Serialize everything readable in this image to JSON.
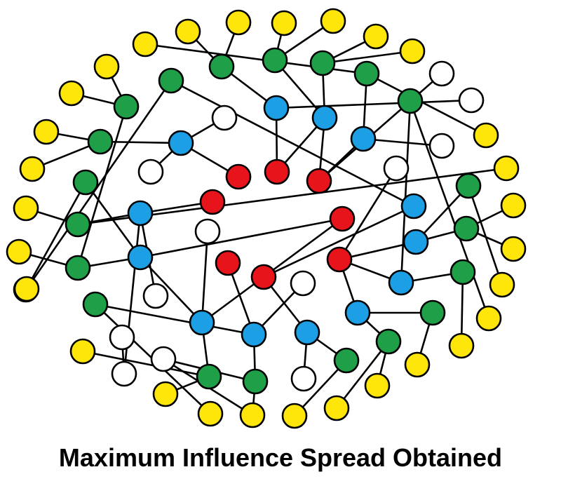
{
  "caption": "Maximum Influence Spread Obtained",
  "colors": {
    "red": "#e8141c",
    "blue": "#1d9fe6",
    "green": "#1e9f48",
    "yellow": "#ffe60a",
    "white": "#ffffff"
  },
  "nodes": [
    {
      "id": "r1",
      "c": "red"
    },
    {
      "id": "r2",
      "c": "red"
    },
    {
      "id": "r3",
      "c": "red"
    },
    {
      "id": "r4",
      "c": "red"
    },
    {
      "id": "r5",
      "c": "red"
    },
    {
      "id": "r6",
      "c": "red"
    },
    {
      "id": "r7",
      "c": "red"
    },
    {
      "id": "r8",
      "c": "red"
    },
    {
      "id": "b1",
      "c": "blue"
    },
    {
      "id": "b2",
      "c": "blue"
    },
    {
      "id": "b3",
      "c": "blue"
    },
    {
      "id": "b4",
      "c": "blue"
    },
    {
      "id": "b5",
      "c": "blue"
    },
    {
      "id": "b6",
      "c": "blue"
    },
    {
      "id": "b7",
      "c": "blue"
    },
    {
      "id": "b8",
      "c": "blue"
    },
    {
      "id": "b9",
      "c": "blue"
    },
    {
      "id": "b10",
      "c": "blue"
    },
    {
      "id": "b11",
      "c": "blue"
    },
    {
      "id": "b12",
      "c": "blue"
    },
    {
      "id": "b13",
      "c": "blue"
    },
    {
      "id": "g1",
      "c": "green"
    },
    {
      "id": "g2",
      "c": "green"
    },
    {
      "id": "g3",
      "c": "green"
    },
    {
      "id": "g4",
      "c": "green"
    },
    {
      "id": "g5",
      "c": "green"
    },
    {
      "id": "g6",
      "c": "green"
    },
    {
      "id": "g7",
      "c": "green"
    },
    {
      "id": "g8",
      "c": "green"
    },
    {
      "id": "g9",
      "c": "green"
    },
    {
      "id": "g10",
      "c": "green"
    },
    {
      "id": "g11",
      "c": "green"
    },
    {
      "id": "g12",
      "c": "green"
    },
    {
      "id": "g13",
      "c": "green"
    },
    {
      "id": "g14",
      "c": "green"
    },
    {
      "id": "g15",
      "c": "green"
    },
    {
      "id": "g16",
      "c": "green"
    },
    {
      "id": "g17",
      "c": "green"
    },
    {
      "id": "g18",
      "c": "green"
    },
    {
      "id": "g19",
      "c": "green"
    },
    {
      "id": "g20",
      "c": "green"
    },
    {
      "id": "y1",
      "c": "yellow"
    },
    {
      "id": "y2",
      "c": "yellow"
    },
    {
      "id": "y3",
      "c": "yellow"
    },
    {
      "id": "y4",
      "c": "yellow"
    },
    {
      "id": "y5",
      "c": "yellow"
    },
    {
      "id": "y6",
      "c": "yellow"
    },
    {
      "id": "y7",
      "c": "yellow"
    },
    {
      "id": "y8",
      "c": "yellow"
    },
    {
      "id": "y9",
      "c": "yellow"
    },
    {
      "id": "y10",
      "c": "yellow"
    },
    {
      "id": "y11",
      "c": "yellow"
    },
    {
      "id": "y12",
      "c": "yellow"
    },
    {
      "id": "y13",
      "c": "yellow"
    },
    {
      "id": "y14",
      "c": "yellow"
    },
    {
      "id": "y15",
      "c": "yellow"
    },
    {
      "id": "y16",
      "c": "yellow"
    },
    {
      "id": "y17",
      "c": "yellow"
    },
    {
      "id": "y18",
      "c": "yellow"
    },
    {
      "id": "y19",
      "c": "yellow"
    },
    {
      "id": "y20",
      "c": "yellow"
    },
    {
      "id": "y21",
      "c": "yellow"
    },
    {
      "id": "y22",
      "c": "yellow"
    },
    {
      "id": "y23",
      "c": "yellow"
    },
    {
      "id": "y24",
      "c": "yellow"
    },
    {
      "id": "y25",
      "c": "yellow"
    },
    {
      "id": "y26",
      "c": "yellow"
    },
    {
      "id": "y27",
      "c": "yellow"
    },
    {
      "id": "y28",
      "c": "yellow"
    },
    {
      "id": "y29",
      "c": "yellow"
    },
    {
      "id": "y30",
      "c": "yellow"
    },
    {
      "id": "w1",
      "c": "white"
    },
    {
      "id": "w2",
      "c": "white"
    },
    {
      "id": "w3",
      "c": "white"
    },
    {
      "id": "w4",
      "c": "white"
    },
    {
      "id": "w5",
      "c": "white"
    },
    {
      "id": "w6",
      "c": "white"
    },
    {
      "id": "w7",
      "c": "white"
    },
    {
      "id": "w8",
      "c": "white"
    },
    {
      "id": "w9",
      "c": "white"
    },
    {
      "id": "w10",
      "c": "white"
    },
    {
      "id": "w11",
      "c": "white"
    },
    {
      "id": "w12",
      "c": "white"
    },
    {
      "id": "w13",
      "c": "white"
    }
  ],
  "edges": [
    [
      "r1",
      "b1"
    ],
    [
      "r2",
      "b2"
    ],
    [
      "r2",
      "b3"
    ],
    [
      "r3",
      "b3"
    ],
    [
      "r3",
      "b4"
    ],
    [
      "r3",
      "w9"
    ],
    [
      "r4",
      "b5"
    ],
    [
      "r5",
      "b6"
    ],
    [
      "r5",
      "b7"
    ],
    [
      "r6",
      "b8"
    ],
    [
      "r7",
      "b9"
    ],
    [
      "r8",
      "b10"
    ],
    [
      "r8",
      "b11"
    ],
    [
      "r8",
      "w7"
    ],
    [
      "b1",
      "w1"
    ],
    [
      "b1",
      "w2"
    ],
    [
      "b1",
      "g2"
    ],
    [
      "b2",
      "g3"
    ],
    [
      "b2",
      "w10"
    ],
    [
      "b3",
      "g4"
    ],
    [
      "b3",
      "g5"
    ],
    [
      "b4",
      "g6"
    ],
    [
      "b4",
      "w8"
    ],
    [
      "b5",
      "g7"
    ],
    [
      "b5",
      "w13"
    ],
    [
      "b5",
      "w11"
    ],
    [
      "b6",
      "g9"
    ],
    [
      "b6",
      "g10"
    ],
    [
      "b6",
      "b7"
    ],
    [
      "b7",
      "g11"
    ],
    [
      "b7",
      "w3"
    ],
    [
      "b8",
      "g12"
    ],
    [
      "b8",
      "g13"
    ],
    [
      "b8",
      "w4"
    ],
    [
      "b9",
      "g14"
    ],
    [
      "b9",
      "w5"
    ],
    [
      "b10",
      "g15"
    ],
    [
      "b10",
      "g16"
    ],
    [
      "b11",
      "g17"
    ],
    [
      "b11",
      "g18"
    ],
    [
      "b12",
      "g19"
    ],
    [
      "b12",
      "r8"
    ],
    [
      "b13",
      "g20"
    ],
    [
      "b13",
      "r7"
    ],
    [
      "g1",
      "y1"
    ],
    [
      "g1",
      "y2"
    ],
    [
      "g2",
      "y3"
    ],
    [
      "g2",
      "y4"
    ],
    [
      "g3",
      "y5"
    ],
    [
      "g3",
      "y6"
    ],
    [
      "g4",
      "y7"
    ],
    [
      "g4",
      "y8"
    ],
    [
      "g5",
      "y9"
    ],
    [
      "g5",
      "y10"
    ],
    [
      "g6",
      "y11"
    ],
    [
      "g6",
      "y12"
    ],
    [
      "g7",
      "y13"
    ],
    [
      "g7",
      "y14"
    ],
    [
      "g8",
      "y15"
    ],
    [
      "g8",
      "y16"
    ],
    [
      "g9",
      "y17"
    ],
    [
      "g9",
      "g1"
    ],
    [
      "g10",
      "y18"
    ],
    [
      "g11",
      "y19"
    ],
    [
      "g11",
      "y20"
    ],
    [
      "g12",
      "y21"
    ],
    [
      "g13",
      "y22"
    ],
    [
      "g13",
      "w6"
    ],
    [
      "g14",
      "y23"
    ],
    [
      "g15",
      "y24"
    ],
    [
      "g15",
      "y25"
    ],
    [
      "g16",
      "y26"
    ],
    [
      "g17",
      "y27"
    ],
    [
      "g18",
      "y28"
    ],
    [
      "g19",
      "y29"
    ],
    [
      "g20",
      "y30"
    ],
    [
      "g8",
      "b12"
    ],
    [
      "w12",
      "w13"
    ],
    [
      "w6",
      "y22"
    ]
  ]
}
